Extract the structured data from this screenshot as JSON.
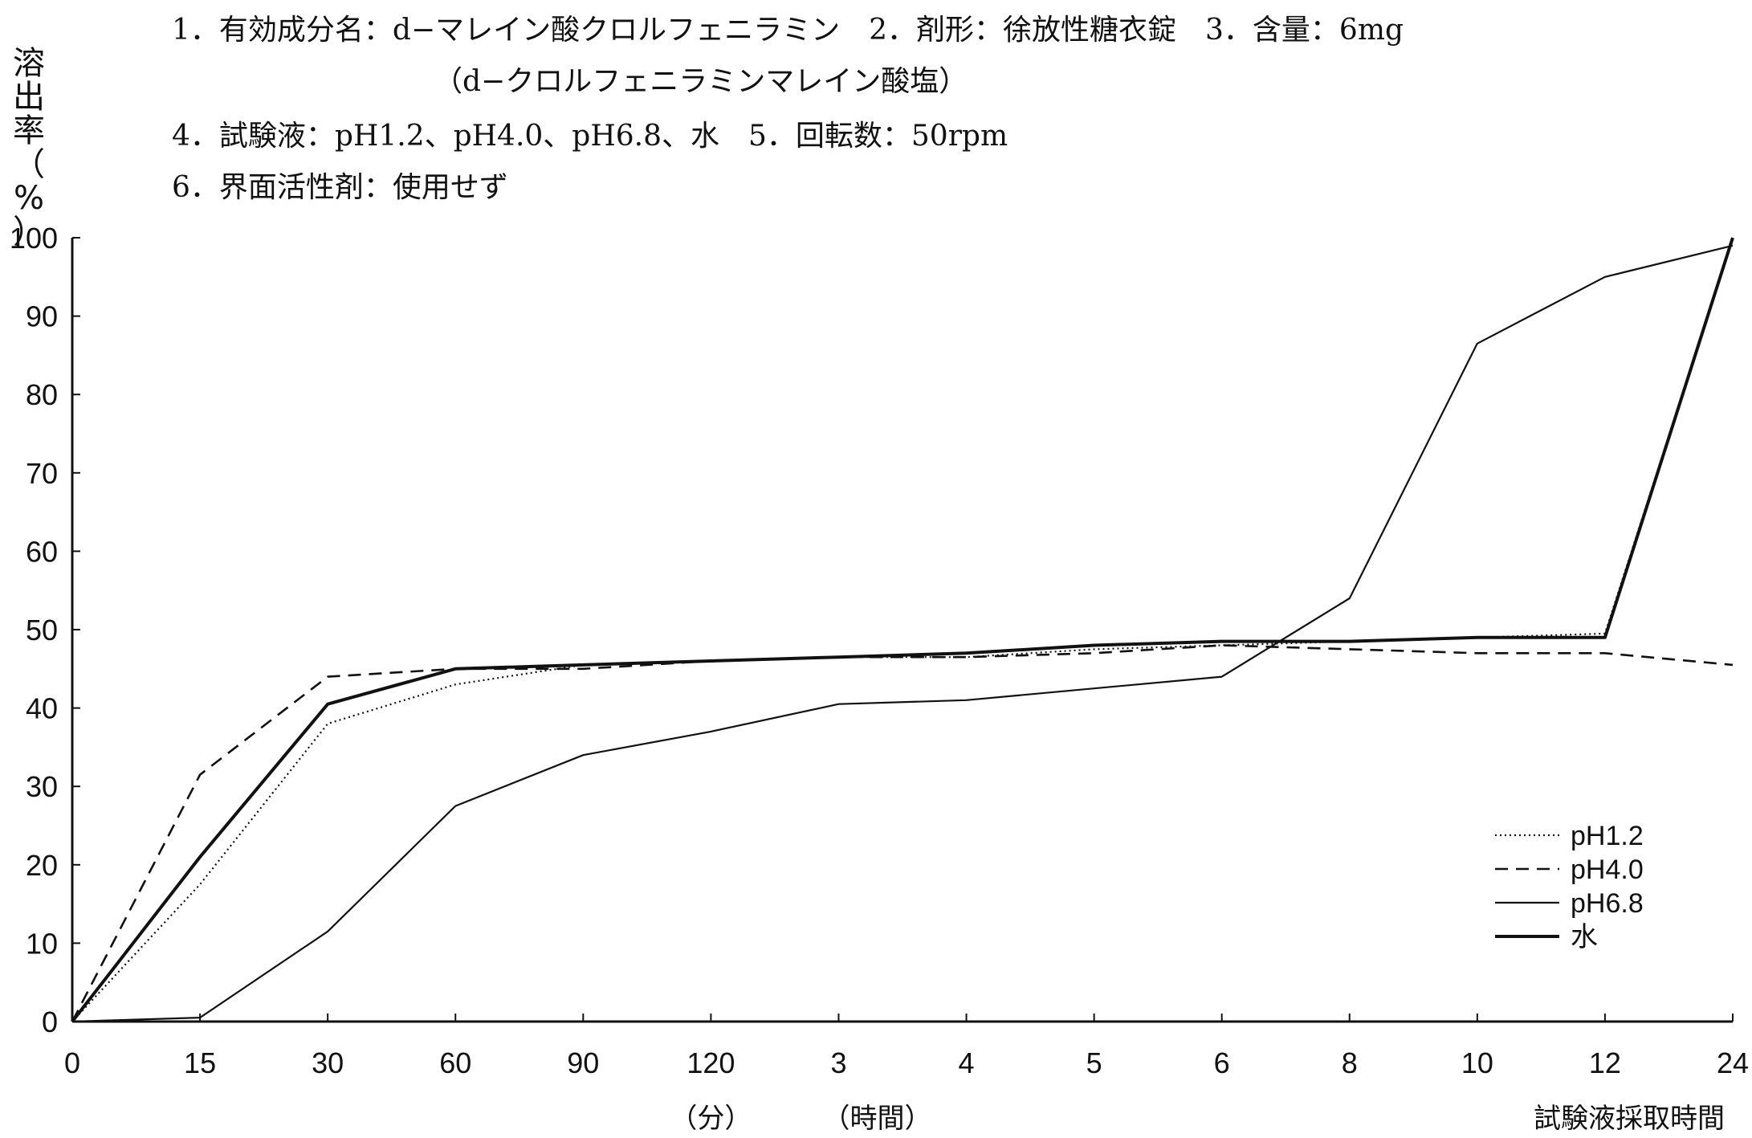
{
  "header": {
    "line1": "1．有効成分名：d−マレイン酸クロルフェニラミン　2．剤形：徐放性糖衣錠　3．含量：6mg",
    "line2": "（d−クロルフェニラミンマレイン酸塩）",
    "line3": "4．試験液：pH1.2、pH4.0、pH6.8、水　5．回転数：50rpm",
    "line4": "6．界面活性剤：使用せず"
  },
  "chart_data": {
    "type": "line",
    "ylabel": "溶出率（%）",
    "xlabel": "試験液採取時間",
    "x_unit_minutes": "（分）",
    "x_unit_hours": "（時間）",
    "categories": [
      "0",
      "15",
      "30",
      "60",
      "90",
      "120",
      "3",
      "4",
      "5",
      "6",
      "8",
      "10",
      "12",
      "24"
    ],
    "ylim": [
      0,
      100
    ],
    "yticks": [
      0,
      10,
      20,
      30,
      40,
      50,
      60,
      70,
      80,
      90,
      100
    ],
    "grid": false,
    "legend_position": "bottom-right",
    "series": [
      {
        "name": "pH1.2",
        "style": "dotted",
        "values": [
          0,
          17.5,
          38,
          43,
          45.5,
          46,
          46.5,
          46.5,
          47.5,
          48,
          48.5,
          49,
          49.5,
          100
        ]
      },
      {
        "name": "pH4.0",
        "style": "dashed",
        "values": [
          0,
          31.5,
          44,
          45,
          45,
          46,
          46.5,
          46.5,
          47,
          48,
          47.5,
          47,
          47,
          45.5
        ]
      },
      {
        "name": "pH6.8",
        "style": "solid-thin",
        "values": [
          0,
          0.5,
          11.5,
          27.5,
          34,
          37,
          40.5,
          41,
          42.5,
          44,
          54,
          86.5,
          95,
          99
        ]
      },
      {
        "name": "水",
        "style": "solid-thick",
        "values": [
          0,
          21,
          40.5,
          45,
          45.5,
          46,
          46.5,
          47,
          48,
          48.5,
          48.5,
          49,
          49,
          100
        ]
      }
    ]
  }
}
